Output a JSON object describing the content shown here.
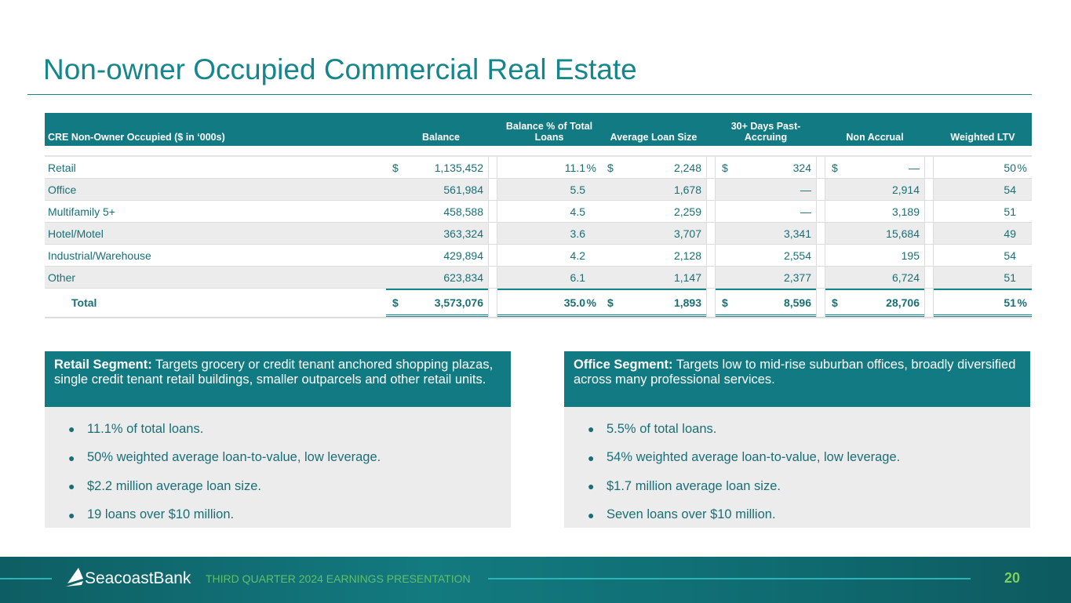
{
  "title": "Non-owner Occupied Commercial Real Estate",
  "table": {
    "headers": [
      "CRE Non-Owner Occupied  ($ in ‘000s)",
      "Balance",
      "Balance % of Total Loans",
      "Average Loan Size",
      "30+ Days Past-Accruing",
      "Non Accrual",
      "Weighted LTV"
    ],
    "rows": [
      {
        "label": "Retail",
        "balance": "1,135,452",
        "pct": "11.1",
        "avg": "2,248",
        "past": "324",
        "nonaccrual": "—",
        "ltv": "50",
        "dollar": "$",
        "pctsign": "%"
      },
      {
        "label": "Office",
        "balance": "561,984",
        "pct": "5.5",
        "avg": "1,678",
        "past": "—",
        "nonaccrual": "2,914",
        "ltv": "54"
      },
      {
        "label": "Multifamily 5+",
        "balance": "458,588",
        "pct": "4.5",
        "avg": "2,259",
        "past": "—",
        "nonaccrual": "3,189",
        "ltv": "51"
      },
      {
        "label": "Hotel/Motel",
        "balance": "363,324",
        "pct": "3.6",
        "avg": "3,707",
        "past": "3,341",
        "nonaccrual": "15,684",
        "ltv": "49"
      },
      {
        "label": "Industrial/Warehouse",
        "balance": "429,894",
        "pct": "4.2",
        "avg": "2,128",
        "past": "2,554",
        "nonaccrual": "195",
        "ltv": "54"
      },
      {
        "label": "Other",
        "balance": "623,834",
        "pct": "6.1",
        "avg": "1,147",
        "past": "2,377",
        "nonaccrual": "6,724",
        "ltv": "51"
      }
    ],
    "total": {
      "label": "Total",
      "balance": "3,573,076",
      "pct": "35.0",
      "avg": "1,893",
      "past": "8,596",
      "nonaccrual": "28,706",
      "ltv": "51",
      "dollar": "$",
      "pctsign": "%"
    }
  },
  "retail": {
    "heading": "Retail Segment:",
    "text": " Targets grocery or credit tenant anchored shopping plazas, single credit tenant retail buildings, smaller outparcels and other retail units.",
    "bullets": [
      "11.1% of total loans.",
      "50% weighted average loan-to-value, low leverage.",
      "$2.2 million average loan size.",
      "19 loans over $10 million."
    ]
  },
  "office": {
    "heading": "Office Segment:",
    "text": " Targets low to mid-rise suburban offices, broadly diversified across many professional services.",
    "bullets": [
      "5.5% of total loans.",
      "54% weighted average loan-to-value, low leverage.",
      "$1.7 million average loan size.",
      "Seven loans over $10 million."
    ]
  },
  "footer": {
    "logo": "SeacoastBank",
    "text": "THIRD QUARTER 2024 EARNINGS PRESENTATION",
    "page": "20"
  }
}
